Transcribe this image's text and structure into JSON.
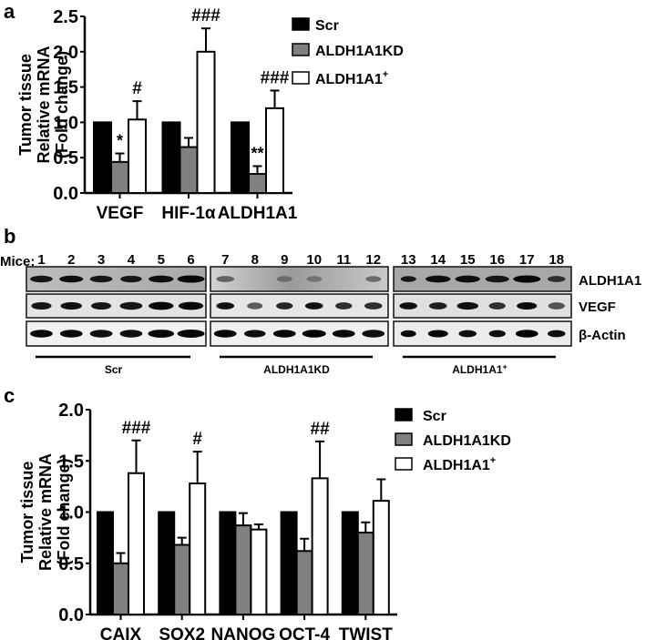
{
  "panels": {
    "a": {
      "letter": "a"
    },
    "b": {
      "letter": "b"
    },
    "c": {
      "letter": "c"
    }
  },
  "legend": {
    "items": [
      {
        "label": "Scr",
        "color": "#000000"
      },
      {
        "label": "ALDH1A1KD",
        "color": "#808080"
      },
      {
        "label": "ALDH1A1",
        "sup": "+",
        "color": "#ffffff"
      }
    ]
  },
  "blot": {
    "mice_label": "Mice:",
    "lanes": [
      "1",
      "2",
      "3",
      "4",
      "5",
      "6",
      "7",
      "8",
      "9",
      "10",
      "11",
      "12",
      "13",
      "14",
      "15",
      "16",
      "17",
      "18"
    ],
    "proteins": [
      "ALDH1A1",
      "VEGF",
      "β-Actin"
    ],
    "groups": [
      {
        "label": "Scr",
        "lanes": [
          "1",
          "2",
          "3",
          "4",
          "5",
          "6"
        ]
      },
      {
        "label": "ALDH1A1KD",
        "lanes": [
          "7",
          "8",
          "9",
          "10",
          "11",
          "12"
        ]
      },
      {
        "label": "ALDH1A1",
        "sup": "+",
        "lanes": [
          "13",
          "14",
          "15",
          "16",
          "17",
          "18"
        ]
      }
    ]
  },
  "chart_data": [
    {
      "panel": "a",
      "type": "bar",
      "title": "",
      "ylabel": "Tumor tissue Relative mRNA (Fold change)",
      "xlabel": "",
      "ylim": [
        0,
        2.5
      ],
      "yticks": [
        "0.0",
        "0.5",
        "1.0",
        "1.5",
        "2.0",
        "2.5"
      ],
      "categories": [
        "VEGF",
        "HIF-1α",
        "ALDH1A1"
      ],
      "series": [
        {
          "name": "Scr",
          "values": [
            1.0,
            1.0,
            1.0
          ],
          "errors": [
            0,
            0,
            0
          ]
        },
        {
          "name": "ALDH1A1KD",
          "values": [
            0.44,
            0.65,
            0.27
          ],
          "errors": [
            0.12,
            0.13,
            0.11
          ]
        },
        {
          "name": "ALDH1A1+",
          "values": [
            1.04,
            2.0,
            1.2
          ],
          "errors": [
            0.26,
            0.33,
            0.25
          ]
        }
      ],
      "annotations": [
        {
          "category": "VEGF",
          "series": "ALDH1A1KD",
          "text": "*"
        },
        {
          "category": "VEGF",
          "series": "ALDH1A1+",
          "text": "#"
        },
        {
          "category": "HIF-1α",
          "series": "ALDH1A1+",
          "text": "###"
        },
        {
          "category": "ALDH1A1",
          "series": "ALDH1A1KD",
          "text": "**"
        },
        {
          "category": "ALDH1A1",
          "series": "ALDH1A1+",
          "text": "###"
        }
      ],
      "legend_position": "right",
      "grid": false
    },
    {
      "panel": "c",
      "type": "bar",
      "title": "",
      "ylabel": "Tumor tissue Relative mRNA (Fold change)",
      "xlabel": "",
      "ylim": [
        0,
        2.0
      ],
      "yticks": [
        "0.0",
        "0.5",
        "1.0",
        "1.5",
        "2.0"
      ],
      "categories": [
        "CAIX",
        "SOX2",
        "NANOG",
        "OCT-4",
        "TWIST"
      ],
      "series": [
        {
          "name": "Scr",
          "values": [
            1.0,
            1.0,
            1.0,
            1.0,
            1.0
          ],
          "errors": [
            0,
            0,
            0,
            0,
            0
          ]
        },
        {
          "name": "ALDH1A1KD",
          "values": [
            0.5,
            0.68,
            0.87,
            0.62,
            0.8
          ],
          "errors": [
            0.1,
            0.07,
            0.12,
            0.12,
            0.1
          ]
        },
        {
          "name": "ALDH1A1+",
          "values": [
            1.38,
            1.28,
            0.83,
            1.33,
            1.11
          ],
          "errors": [
            0.32,
            0.31,
            0.05,
            0.36,
            0.21
          ]
        }
      ],
      "annotations": [
        {
          "category": "CAIX",
          "series": "ALDH1A1+",
          "text": "###"
        },
        {
          "category": "SOX2",
          "series": "ALDH1A1+",
          "text": "#"
        },
        {
          "category": "OCT-4",
          "series": "ALDH1A1+",
          "text": "##"
        }
      ],
      "legend_position": "right",
      "grid": false
    }
  ]
}
